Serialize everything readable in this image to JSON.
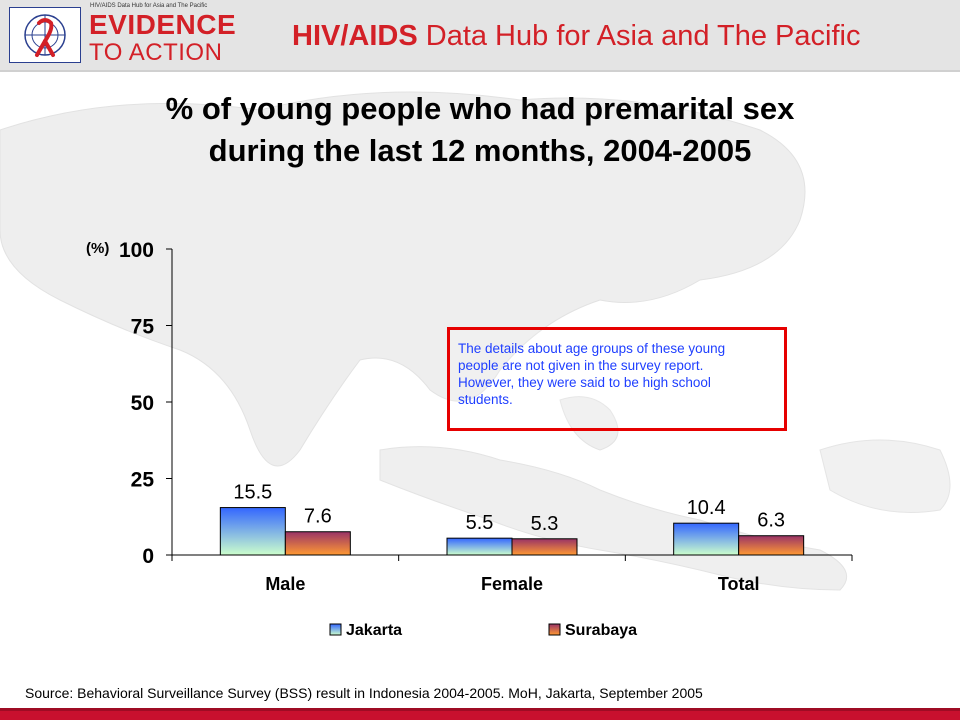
{
  "header": {
    "logo_small_line1": "HIV/AIDS Data Hub for Asia and The Pacific",
    "logo_evidence": "EVIDENCE",
    "logo_to_action": "TO ACTION",
    "title_bold": "HIV/AIDS",
    "title_rest": " Data Hub for Asia and The Pacific"
  },
  "note": {
    "lines": [
      "The details about age groups of these young",
      "people are not given in the survey report.",
      "However, they were said to be high school",
      " students."
    ]
  },
  "source": "Source: Behavioral Surveillance Survey (BSS) result in Indonesia 2004-2005. MoH, Jakarta, September 2005",
  "colors": {
    "brand_red": "#d32027",
    "jakarta_top": "#3366ff",
    "jakarta_bottom": "#ccffcc",
    "surabaya_top": "#993366",
    "surabaya_bottom": "#ff9933",
    "note_border": "#e60000",
    "note_text": "#1f3fff"
  },
  "chart_data": {
    "type": "bar",
    "title": "% of young people who had premarital sex during the last 12 months, 2004-2005",
    "title_lines": [
      "% of young people who had premarital sex",
      "during the last 12 months, 2004-2005"
    ],
    "ylabel": "(%)",
    "xlabel": "",
    "ylim": [
      0,
      100
    ],
    "yticks": [
      0,
      25,
      50,
      75,
      100
    ],
    "categories": [
      "Male",
      "Female",
      "Total"
    ],
    "series": [
      {
        "name": "Jakarta",
        "values": [
          15.5,
          5.5,
          10.4
        ],
        "value_labels": [
          "15.5",
          "5.5",
          "10.4"
        ]
      },
      {
        "name": "Surabaya",
        "values": [
          7.6,
          5.3,
          6.3
        ],
        "value_labels": [
          "7.6",
          "5.3",
          "6.3"
        ]
      }
    ],
    "grid": false,
    "legend": "bottom"
  }
}
